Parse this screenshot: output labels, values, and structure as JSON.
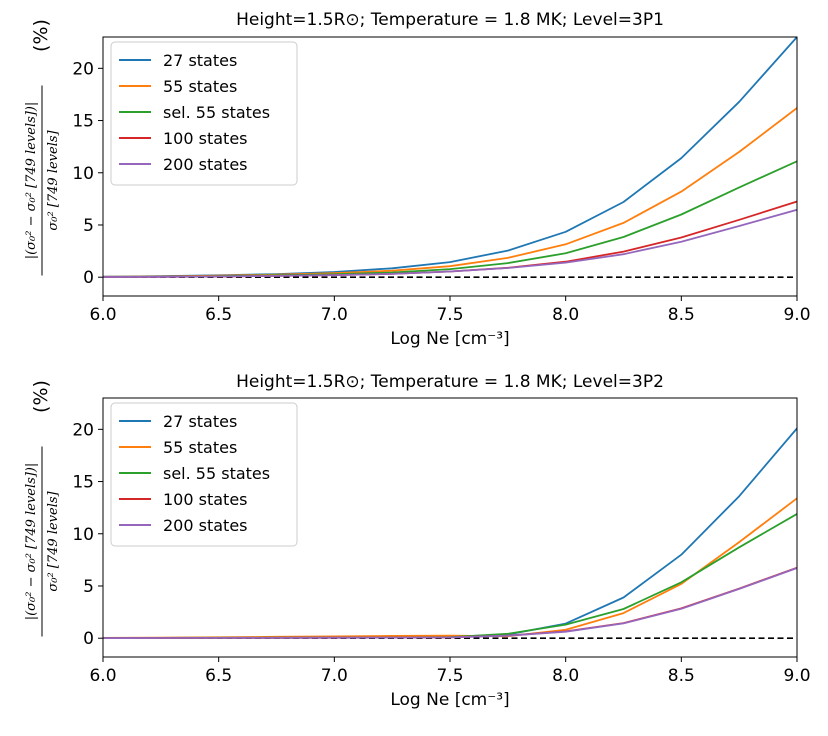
{
  "chart_data": [
    {
      "type": "line",
      "title": "Height=1.5R⊙; Temperature = 1.8 MK; Level=3P1",
      "xlabel": "Log Ne [cm⁻³]",
      "ylabel": {
        "numerator": "|(σ₀² − σ₀² [749 levels])|",
        "denominator": "σ₀² [749 levels]",
        "unit": "(%)"
      },
      "xlim": [
        6.0,
        9.0
      ],
      "ylim": [
        -1.8,
        23
      ],
      "xticks": [
        "6.0",
        "6.5",
        "7.0",
        "7.5",
        "8.0",
        "8.5",
        "9.0"
      ],
      "yticks": [
        "0",
        "5",
        "10",
        "15",
        "20"
      ],
      "x": [
        6.0,
        6.25,
        6.5,
        6.75,
        7.0,
        7.25,
        7.5,
        7.75,
        8.0,
        8.25,
        8.5,
        8.75,
        9.0
      ],
      "reference_line": 0,
      "legend_position": "upper left",
      "series": [
        {
          "name": "27 states",
          "color": "#1f77b4",
          "values": [
            0.05,
            0.1,
            0.18,
            0.3,
            0.5,
            0.85,
            1.45,
            2.55,
            4.35,
            7.2,
            11.4,
            16.8,
            23.0
          ]
        },
        {
          "name": "55 states",
          "color": "#ff7f0e",
          "values": [
            0.04,
            0.08,
            0.14,
            0.24,
            0.38,
            0.62,
            1.05,
            1.85,
            3.15,
            5.2,
            8.2,
            12.0,
            16.2
          ]
        },
        {
          "name": "sel. 55 states",
          "color": "#2ca02c",
          "values": [
            0.03,
            0.06,
            0.1,
            0.18,
            0.28,
            0.45,
            0.78,
            1.35,
            2.3,
            3.85,
            6.0,
            8.6,
            11.1
          ]
        },
        {
          "name": "100 states",
          "color": "#d62728",
          "values": [
            0.02,
            0.04,
            0.07,
            0.12,
            0.2,
            0.32,
            0.55,
            0.9,
            1.48,
            2.45,
            3.8,
            5.5,
            7.25
          ]
        },
        {
          "name": "200 states",
          "color": "#9467bd",
          "values": [
            0.02,
            0.04,
            0.07,
            0.12,
            0.2,
            0.32,
            0.55,
            0.88,
            1.4,
            2.2,
            3.4,
            4.9,
            6.45
          ]
        }
      ]
    },
    {
      "type": "line",
      "title": "Height=1.5R⊙; Temperature = 1.8 MK; Level=3P2",
      "xlabel": "Log Ne [cm⁻³]",
      "ylabel": {
        "numerator": "|(σ₀² − σ₀² [749 levels])|",
        "denominator": "σ₀² [749 levels]",
        "unit": "(%)"
      },
      "xlim": [
        6.0,
        9.0
      ],
      "ylim": [
        -1.8,
        23
      ],
      "xticks": [
        "6.0",
        "6.5",
        "7.0",
        "7.5",
        "8.0",
        "8.5",
        "9.0"
      ],
      "yticks": [
        "0",
        "5",
        "10",
        "15",
        "20"
      ],
      "x": [
        6.0,
        6.25,
        6.5,
        6.75,
        7.0,
        7.25,
        7.5,
        7.75,
        8.0,
        8.25,
        8.5,
        8.75,
        9.0
      ],
      "reference_line": 0,
      "legend_position": "upper left",
      "series": [
        {
          "name": "27 states",
          "color": "#1f77b4",
          "values": [
            0.02,
            0.03,
            0.05,
            0.06,
            0.08,
            0.1,
            0.12,
            0.35,
            1.4,
            3.9,
            8.0,
            13.6,
            20.1
          ]
        },
        {
          "name": "55 states",
          "color": "#ff7f0e",
          "values": [
            0.03,
            0.06,
            0.09,
            0.13,
            0.17,
            0.22,
            0.25,
            0.18,
            0.8,
            2.4,
            5.2,
            9.2,
            13.4
          ]
        },
        {
          "name": "sel. 55 states",
          "color": "#2ca02c",
          "values": [
            0.02,
            0.03,
            0.04,
            0.05,
            0.06,
            0.07,
            0.1,
            0.42,
            1.3,
            2.8,
            5.35,
            8.7,
            11.9
          ]
        },
        {
          "name": "100 states",
          "color": "#d62728",
          "values": [
            0.01,
            0.02,
            0.03,
            0.04,
            0.05,
            0.06,
            0.08,
            0.25,
            0.65,
            1.45,
            2.85,
            4.75,
            6.75
          ]
        },
        {
          "name": "200 states",
          "color": "#9467bd",
          "values": [
            0.01,
            0.02,
            0.03,
            0.04,
            0.05,
            0.06,
            0.08,
            0.24,
            0.62,
            1.42,
            2.82,
            4.72,
            6.72
          ]
        }
      ]
    }
  ]
}
